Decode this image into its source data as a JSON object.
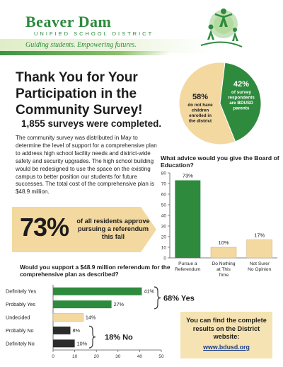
{
  "header": {
    "brand_name": "Beaver Dam",
    "brand_sub": "UNIFIED SCHOOL DISTRICT",
    "tagline": "Guiding students. Empowering futures."
  },
  "title": "Thank You for Your Participation in the Community Survey!",
  "surveys_completed": "1,855 surveys were completed.",
  "body_text": "The community survey was distributed in May to determine the level of support for a comprehensive plan to address high school facility needs and district-wide safety and security upgrades. The high school building would be redesigned to use the space on the existing campus to better position our students for future successes.  The total cost of the comprehensive plan is $48.9 million.",
  "callout": {
    "big": "73%",
    "text": "of all residents approve pursuing a referendum this fall"
  },
  "results": {
    "text": "You can find the complete results on the District website:",
    "link": "www.bdusd.org"
  },
  "colors": {
    "green": "#2e8b3e",
    "tan": "#f3d8a0",
    "dark": "#2b2b2b"
  },
  "chart_data": [
    {
      "type": "pie",
      "slices": [
        {
          "value": 58,
          "label_pct": "58%",
          "label": "do not have children enrolled in the district",
          "color": "#f3d8a0"
        },
        {
          "value": 42,
          "label_pct": "42%",
          "label": "of survey respondents are BDUSD parents",
          "color": "#2e8b3e"
        }
      ]
    },
    {
      "type": "bar",
      "title": "What advice would you give the Board of Education?",
      "categories": [
        "Pursue a Referendum",
        "Do Nothing at This Time",
        "Not Sure/ No Opinion"
      ],
      "values": [
        73,
        10,
        17
      ],
      "value_labels": [
        "73%",
        "10%",
        "17%"
      ],
      "colors": [
        "#2e8b3e",
        "#f3d8a0",
        "#f3d8a0"
      ],
      "ylim": [
        0,
        80
      ],
      "yticks": [
        0,
        10,
        20,
        30,
        40,
        50,
        60,
        70,
        80
      ]
    },
    {
      "type": "bar",
      "orientation": "horizontal",
      "title": "Would you support a $48.9 million referendum for the comprehensive plan as described?",
      "categories": [
        "Definitely Yes",
        "Probably Yes",
        "Undecided",
        "Probably No",
        "Definitely No"
      ],
      "values": [
        41,
        27,
        14,
        8,
        10
      ],
      "value_labels": [
        "41%",
        "27%",
        "14%",
        "8%",
        "10%"
      ],
      "colors": [
        "#2e8b3e",
        "#2e8b3e",
        "#f3d8a0",
        "#2b2b2b",
        "#2b2b2b"
      ],
      "xlim": [
        0,
        50
      ],
      "xticks": [
        0,
        10,
        20,
        30,
        40,
        50
      ],
      "group_labels": [
        "68% Yes",
        "18% No"
      ]
    }
  ]
}
